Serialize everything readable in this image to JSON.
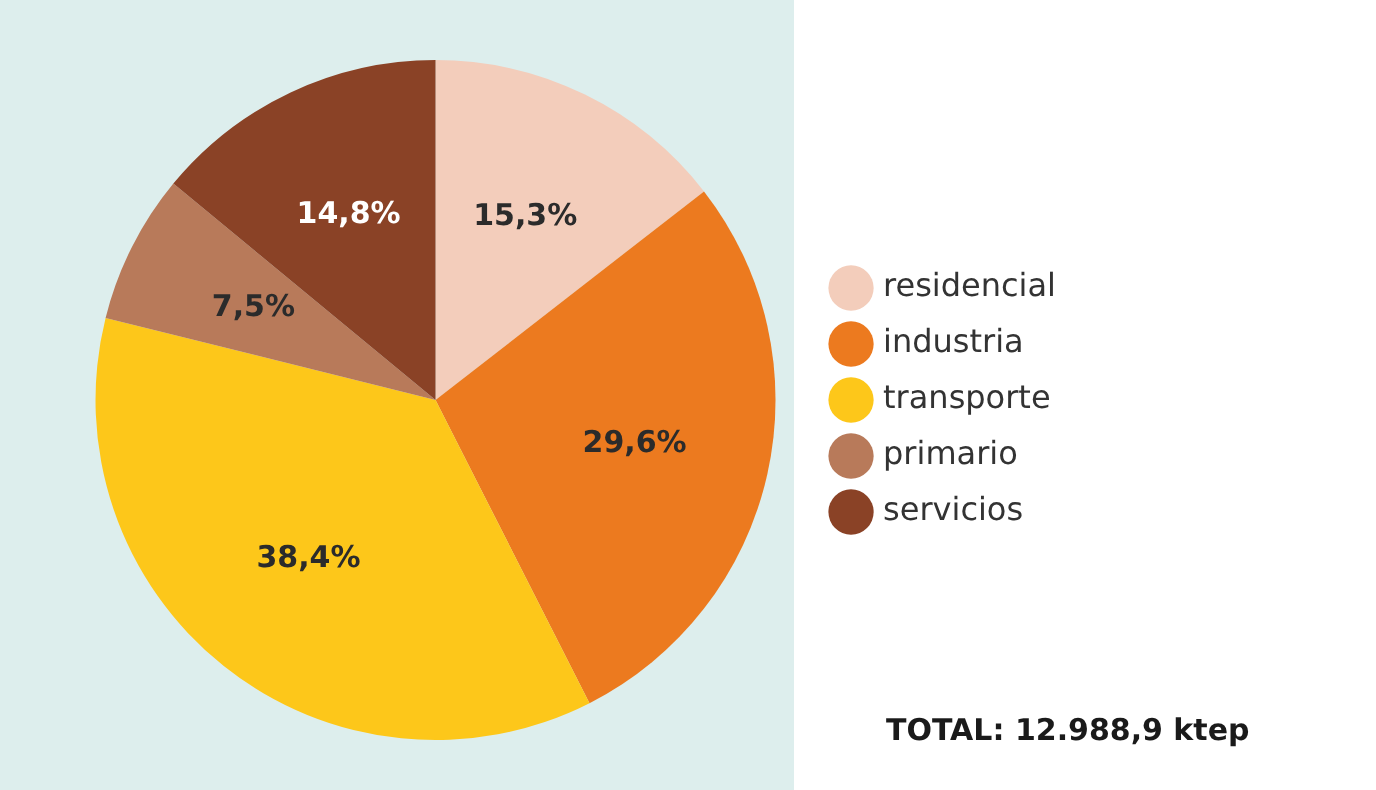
{
  "chart_data": {
    "type": "pie",
    "categories": [
      "residencial",
      "industria",
      "transporte",
      "primario",
      "servicios"
    ],
    "values": [
      15.3,
      29.6,
      38.4,
      7.5,
      14.8
    ],
    "colors": [
      "#f3cdbb",
      "#ec7a1f",
      "#fdc71a",
      "#b87a5a",
      "#8a4226"
    ],
    "value_labels": [
      "15,3%",
      "29,6%",
      "38,4%",
      "7,5%",
      "14,8%"
    ],
    "legend": "right",
    "annotations": [
      "TOTAL: 12.988,9 ktep"
    ]
  }
}
